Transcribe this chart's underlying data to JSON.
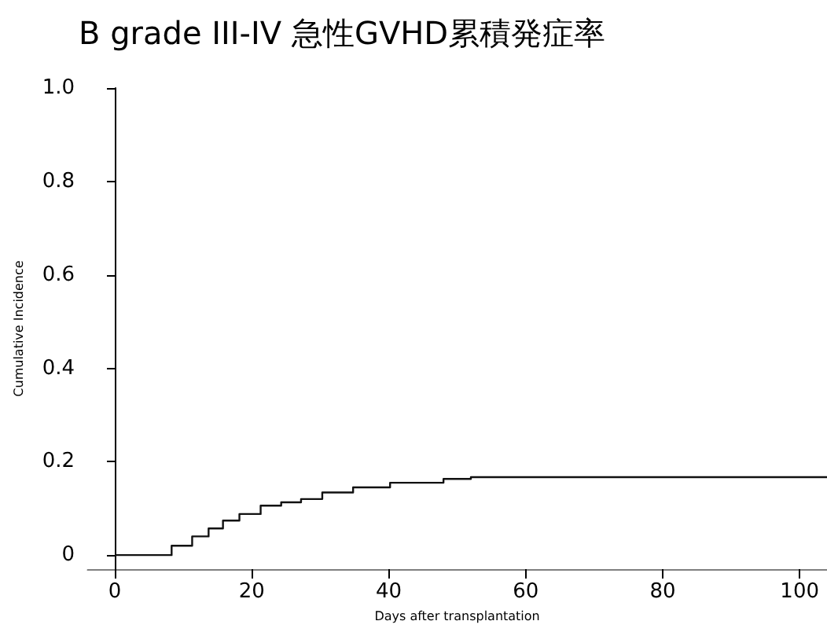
{
  "chart_data": {
    "type": "step",
    "title": "B grade III-IV 急性GVHD累積発症率",
    "xlabel": "Days after transplantation",
    "ylabel": "Cumulative Incidence",
    "x": [
      0,
      7,
      8.3,
      11.3,
      13.7,
      15.8,
      18.2,
      21.3,
      24.3,
      27.2,
      30.3,
      34.8,
      40.2,
      48,
      52,
      104
    ],
    "series": [
      {
        "color": "#111111",
        "values": [
          0,
          0,
          0.02,
          0.04,
          0.057,
          0.074,
          0.088,
          0.106,
          0.113,
          0.12,
          0.134,
          0.145,
          0.155,
          0.163,
          0.167,
          0.167
        ]
      }
    ],
    "xlim": [
      -4,
      104
    ],
    "xticks": [
      0,
      20,
      40,
      60,
      80,
      100
    ],
    "ylim": [
      -0.03,
      1.0
    ],
    "yticks": [
      0,
      0.2,
      0.4,
      0.6,
      0.8,
      {
        "value": 1,
        "label": "1.0"
      }
    ],
    "grid": false,
    "marker": "none",
    "line_style": "solid"
  }
}
